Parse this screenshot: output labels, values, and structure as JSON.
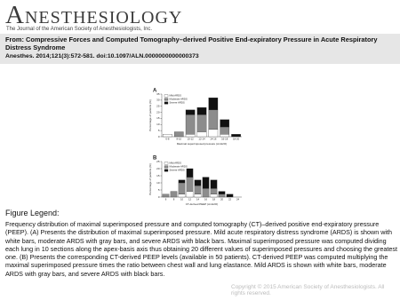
{
  "header": {
    "journal": "Anesthesiology",
    "subtitle": "The Journal of the American Society of Anesthesiologists, Inc."
  },
  "article": {
    "title": "From: Compressive Forces and Computed Tomography–derived Positive End-expiratory Pressure in Acute Respiratory Distress Syndrome",
    "citation": "Anesthes. 2014;121(3):572-581. doi:10.1097/ALN.0000000000000373"
  },
  "figure": {
    "panels": [
      {
        "label": "A",
        "type": "bar",
        "stacked": true,
        "ylabel": "Percentage of patients (%)",
        "xlabel": "Maximal superimposed pressure (cmH2O)",
        "categories": [
          "6-8",
          "8-10",
          "10-12",
          "12-14",
          "14-16",
          "16-18",
          "18-20"
        ],
        "ylim": [
          0,
          35
        ],
        "yticks": [
          0,
          5,
          10,
          15,
          20,
          25,
          30,
          35
        ],
        "series": [
          {
            "name": "Mild ARDS",
            "color": "#ffffff",
            "values": [
              2,
              0,
              2,
              4,
              6,
              2,
              0
            ]
          },
          {
            "name": "Moderate ARDS",
            "color": "#8c8c8c",
            "values": [
              0,
              4,
              16,
              14,
              16,
              6,
              0
            ]
          },
          {
            "name": "Severe ARDS",
            "color": "#111111",
            "values": [
              0,
              0,
              4,
              6,
              10,
              6,
              2
            ]
          }
        ]
      },
      {
        "label": "B",
        "type": "bar",
        "stacked": true,
        "ylabel": "Percentage of patients (%)",
        "xlabel": "CT-derived PEEP (cmH2O)",
        "categories": [
          "6",
          "8",
          "10",
          "12",
          "14",
          "16",
          "18",
          "20",
          "22",
          "24"
        ],
        "ylim": [
          0,
          25
        ],
        "yticks": [
          0,
          5,
          10,
          15,
          20,
          25
        ],
        "series": [
          {
            "name": "Mild ARDS",
            "color": "#ffffff",
            "values": [
              0,
              0,
              2,
              4,
              2,
              0,
              2,
              0,
              0,
              0
            ]
          },
          {
            "name": "Moderate ARDS",
            "color": "#8c8c8c",
            "values": [
              2,
              4,
              8,
              10,
              6,
              6,
              4,
              2,
              0,
              0
            ]
          },
          {
            "name": "Severe ARDS",
            "color": "#111111",
            "values": [
              0,
              0,
              2,
              6,
              4,
              8,
              6,
              2,
              2,
              0
            ]
          }
        ]
      }
    ]
  },
  "legend": {
    "heading": "Figure Legend:",
    "text": "Frequency distribution of maximal superimposed pressure and computed tomography (CT)–derived positive end-expiratory pressure (PEEP). (A) Presents the distribution of maximal superimposed pressure. Mild acute respiratory distress syndrome (ARDS) is shown with white bars, moderate ARDS with gray bars, and severe ARDS with black bars. Maximal superimposed pressure was computed dividing each lung in 10 sections along the apex-basis axis thus obtaining 20 different values of superimposed pressures and choosing the greatest one. (B) Presents the corresponding CT-derived PEEP levels (available in 50 patients). CT-derived PEEP was computed multiplying the maximal superimposed pressure times the ratio between chest wall and lung elastance. Mild ARDS is shown with white bars, moderate ARDS with gray bars, and severe ARDS with black bars."
  },
  "copyright": "Copyright © 2015 American Society of Anesthesiologists. All rights reserved."
}
